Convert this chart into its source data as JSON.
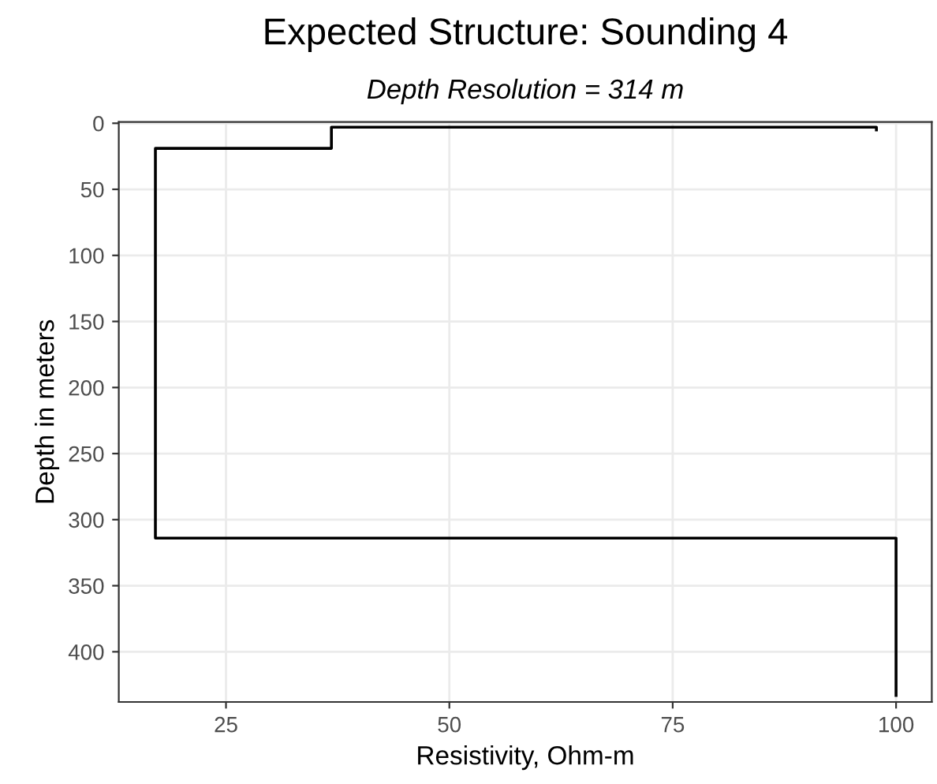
{
  "chart_data": {
    "type": "line",
    "title": "Expected Structure: Sounding 4",
    "subtitle": "Depth Resolution = 314 m",
    "xlabel": "Resistivity, Ohm-m",
    "ylabel": "Depth in meters",
    "series": [
      {
        "color": "#000000",
        "x": [
          97.8,
          97.8,
          36.8,
          36.8,
          17.1,
          17.1,
          100,
          100
        ],
        "values": [
          5,
          3,
          3,
          19,
          19,
          314,
          314,
          433
        ]
      }
    ],
    "xlim": [
      13,
      104
    ],
    "xticks": [
      25,
      50,
      75,
      100
    ],
    "ylim": [
      438,
      -1
    ],
    "yticks": [
      0,
      50,
      100,
      150,
      200,
      250,
      300,
      350,
      400
    ],
    "grid": true,
    "marker": "none",
    "line_style": "solid"
  }
}
